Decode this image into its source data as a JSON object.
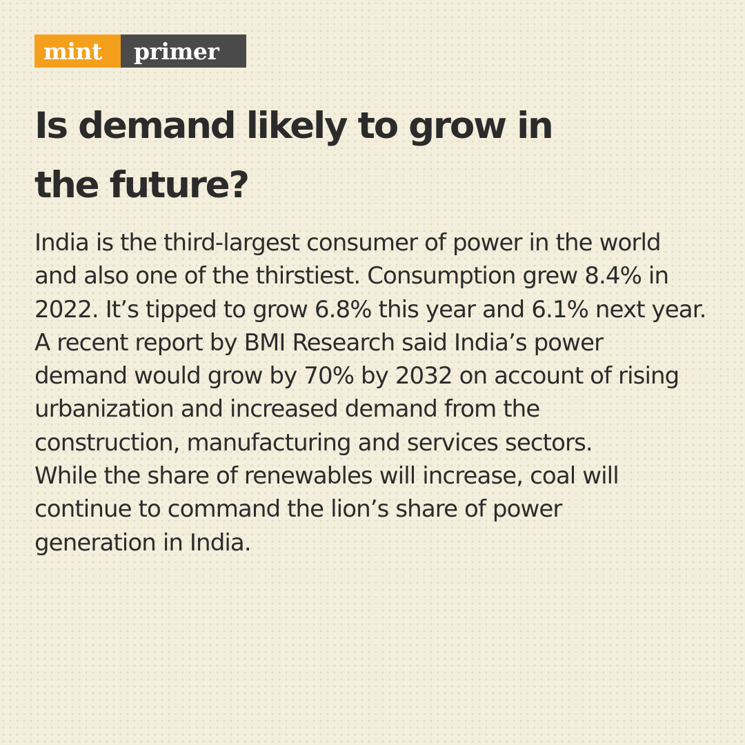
{
  "brand": {
    "left": "mint",
    "right": "primer"
  },
  "colors": {
    "background": "#f4eedd",
    "brand_orange": "#f4a01c",
    "brand_gray": "#4a4a4a",
    "text": "#2b2b2b"
  },
  "headline": {
    "lines": [
      "Is demand likely to grow in",
      "the future?"
    ]
  },
  "body": {
    "lines": [
      "India is the third-largest consumer of power in the world",
      "and also one of the thirstiest. Consumption grew 8.4% in",
      "2022. It’s tipped to grow 6.8% this year and 6.1% next year.",
      "A recent report by BMI Research said India’s power",
      "demand would grow by 70% by 2032 on account of rising",
      "urbanization and increased demand from the",
      "construction, manufacturing and services sectors.",
      "While the share of renewables will increase, coal will",
      "continue to command the lion’s share of power",
      "generation in India."
    ]
  }
}
